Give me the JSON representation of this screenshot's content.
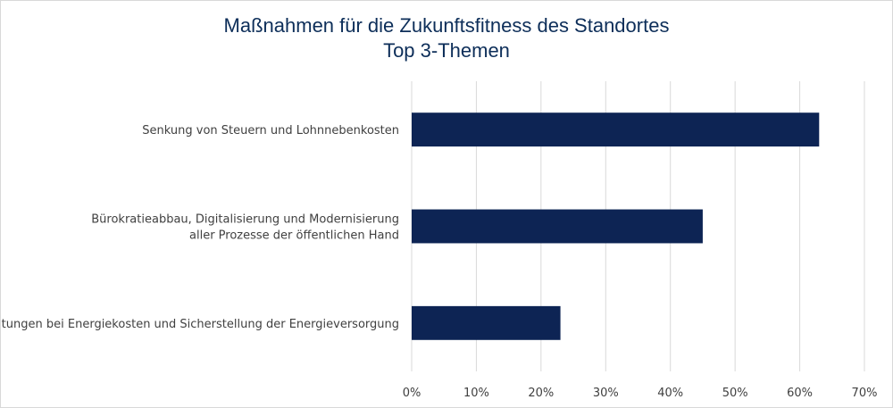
{
  "chart_data": {
    "type": "bar",
    "orientation": "horizontal",
    "title": "Maßnahmen für die Zukunftsfitness des Standortes",
    "subtitle": "Top 3-Themen",
    "categories": [
      [
        "Senkung von Steuern und Lohnnebenkosten"
      ],
      [
        "Bürokratieabbau, Digitalisierung und Modernisierung",
        "aller Prozesse der öffentlichen Hand"
      ],
      [
        "Entlastungen bei Energiekosten und Sicherstellung der Energieversorgung"
      ]
    ],
    "values": [
      63,
      45,
      23
    ],
    "xlim": [
      0,
      70
    ],
    "xticks": [
      "0%",
      "10%",
      "20%",
      "30%",
      "40%",
      "50%",
      "60%",
      "70%"
    ],
    "grid": true,
    "legend": "none",
    "bar_color": "#0d2454"
  }
}
